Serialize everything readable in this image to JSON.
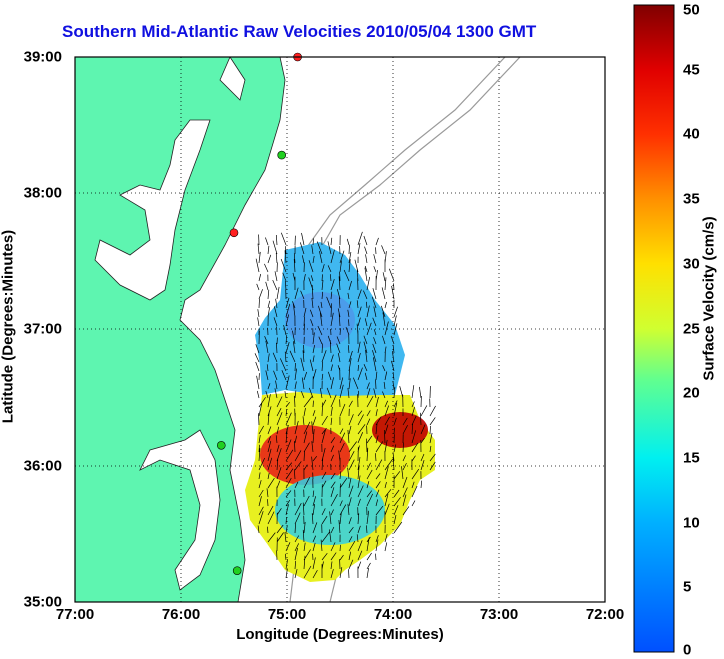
{
  "title": "Southern Mid-Atlantic Raw Velocities 2010/05/04 1300 GMT",
  "map": {
    "xlabel": "Longitude (Degrees:Minutes)",
    "ylabel": "Latitude (Degrees:Minutes)",
    "lon_ticks": [
      "77:00",
      "76:00",
      "75:00",
      "74:00",
      "73:00",
      "72:00"
    ],
    "lat_ticks": [
      "39:00",
      "38:00",
      "37:00",
      "36:00",
      "35:00"
    ],
    "lon_range": [
      -77,
      -72
    ],
    "lat_range": [
      35,
      39
    ],
    "land_color": "#5ef5b0",
    "grid": "dotted"
  },
  "colorbar": {
    "label": "Surface Velocity (cm/s)",
    "ticks": [
      "0",
      "5",
      "10",
      "15",
      "20",
      "25",
      "30",
      "35",
      "40",
      "45",
      "50"
    ],
    "range": [
      0,
      50
    ],
    "colormap": "jet"
  },
  "stations": [
    {
      "lon": -74.9,
      "lat": 39.0,
      "color": "#ff2020"
    },
    {
      "lon": -75.05,
      "lat": 38.28,
      "color": "#20d020"
    },
    {
      "lon": -75.5,
      "lat": 37.71,
      "color": "#ff2020"
    },
    {
      "lon": -75.62,
      "lat": 36.15,
      "color": "#20d020"
    },
    {
      "lon": -75.47,
      "lat": 35.23,
      "color": "#20d020"
    }
  ]
}
